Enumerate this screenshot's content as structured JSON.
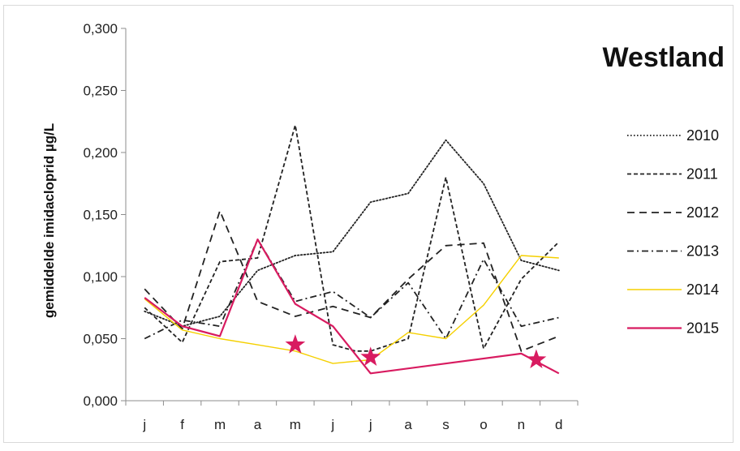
{
  "chart_data": {
    "type": "line",
    "title": "Westland",
    "xlabel": "",
    "ylabel": "gemiddelde imidacloprid µg/L",
    "categories": [
      "j",
      "f",
      "m",
      "a",
      "m",
      "j",
      "j",
      "a",
      "s",
      "o",
      "n",
      "d"
    ],
    "ylim": [
      0,
      0.3
    ],
    "yticks": [
      "0,000",
      "0,050",
      "0,100",
      "0,150",
      "0,200",
      "0,250",
      "0,300"
    ],
    "grid": false,
    "legend_position": "right",
    "series": [
      {
        "name": "2010",
        "color": "#222222",
        "dash": "dotted",
        "x": [
          0,
          1,
          2,
          3,
          4,
          5,
          6,
          7,
          8,
          9,
          10,
          11
        ],
        "values": [
          0.072,
          0.06,
          0.068,
          0.105,
          0.117,
          0.12,
          0.16,
          0.167,
          0.21,
          0.175,
          0.113,
          0.105
        ]
      },
      {
        "name": "2011",
        "color": "#222222",
        "dash": "short-dash",
        "x": [
          0,
          1,
          2,
          3,
          4,
          5,
          5.6,
          6,
          7,
          8,
          9,
          10,
          11
        ],
        "values": [
          0.075,
          0.047,
          0.112,
          0.115,
          0.222,
          0.045,
          0.04,
          0.04,
          0.05,
          0.18,
          0.042,
          0.098,
          0.128
        ]
      },
      {
        "name": "2012",
        "color": "#222222",
        "dash": "long-dash",
        "x": [
          0,
          1,
          2,
          3,
          4,
          5,
          6,
          7,
          8,
          9,
          10,
          11
        ],
        "values": [
          0.09,
          0.058,
          0.153,
          0.08,
          0.068,
          0.076,
          0.067,
          0.098,
          0.125,
          0.127,
          0.04,
          0.052
        ]
      },
      {
        "name": "2013",
        "color": "#222222",
        "dash": "dash-dot",
        "x": [
          0,
          1,
          2,
          3,
          4,
          5,
          6,
          7,
          8,
          9,
          10,
          11
        ],
        "values": [
          0.05,
          0.065,
          0.06,
          0.13,
          0.08,
          0.088,
          0.067,
          0.095,
          0.05,
          0.114,
          0.06,
          0.067
        ]
      },
      {
        "name": "2014",
        "color": "#f5d000",
        "dash": "solid",
        "x": [
          0,
          1,
          2,
          3,
          4,
          5,
          6,
          7,
          8,
          9,
          10,
          11
        ],
        "values": [
          0.082,
          0.057,
          0.05,
          0.045,
          0.04,
          0.03,
          0.033,
          0.055,
          0.05,
          0.077,
          0.117,
          0.115
        ]
      },
      {
        "name": "2015",
        "color": "#d81b60",
        "dash": "solid",
        "x": [
          0,
          1,
          2,
          3,
          4,
          5,
          6,
          10,
          11
        ],
        "values": [
          0.083,
          0.06,
          0.052,
          0.13,
          0.078,
          0.06,
          0.022,
          0.038,
          0.022
        ]
      }
    ],
    "annotations": [
      {
        "marker": "star",
        "color": "#d81b60",
        "x": 4,
        "y": 0.045
      },
      {
        "marker": "star",
        "color": "#d81b60",
        "x": 6,
        "y": 0.035
      },
      {
        "marker": "star",
        "color": "#d81b60",
        "x": 10.4,
        "y": 0.033
      }
    ]
  }
}
